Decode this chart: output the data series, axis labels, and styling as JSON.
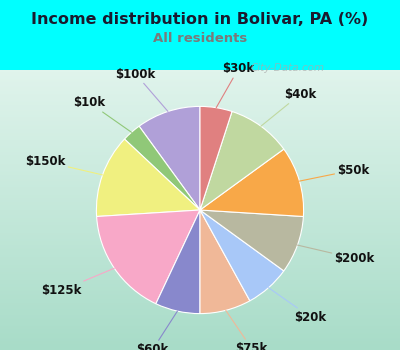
{
  "title": "Income distribution in Bolivar, PA (%)",
  "subtitle": "All residents",
  "title_color": "#1a1a2e",
  "subtitle_color": "#7a7a7a",
  "background_color": "#00ffff",
  "chart_bg_top": "#d8f0e8",
  "chart_bg_bottom": "#c8e8d8",
  "watermark": "City-Data.com",
  "labels": [
    "$100k",
    "$10k",
    "$150k",
    "$125k",
    "$60k",
    "$75k",
    "$20k",
    "$200k",
    "$50k",
    "$40k",
    "$30k"
  ],
  "values": [
    10,
    3,
    13,
    17,
    7,
    8,
    7,
    9,
    11,
    10,
    5
  ],
  "colors": [
    "#b0a0d8",
    "#90c878",
    "#f0f080",
    "#f8a8c8",
    "#8888cc",
    "#f0b898",
    "#a8c8f8",
    "#b8b8a0",
    "#f8a848",
    "#c0d8a0",
    "#e08080"
  ],
  "startangle": 90,
  "label_fontsize": 8.5,
  "label_color": "#111111"
}
